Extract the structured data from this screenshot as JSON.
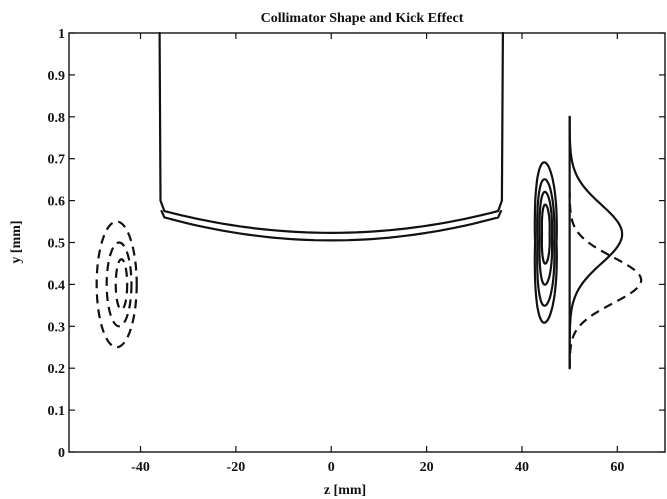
{
  "chart_data": {
    "type": "line",
    "title": "Collimator Shape and Kick Effect",
    "xlabel": "z [mm]",
    "ylabel": "y [mm]",
    "xlim": [
      -55,
      70
    ],
    "ylim": [
      0,
      1
    ],
    "xticks": [
      -40,
      -20,
      0,
      20,
      40,
      60
    ],
    "yticks": [
      0,
      0.1,
      0.2,
      0.3,
      0.4,
      0.5,
      0.6,
      0.7,
      0.8,
      0.9,
      1
    ],
    "ytick_labels": [
      "0",
      "0.1",
      "0.2",
      "0.3",
      "0.4",
      "0.5",
      "0.6",
      "0.7",
      "0.8",
      "0.9",
      "1"
    ],
    "grid": false,
    "collimator": {
      "outer": [
        [
          -36,
          1.0
        ],
        [
          -35.8,
          0.6
        ],
        [
          -35,
          0.575
        ],
        [
          -20,
          0.552
        ],
        [
          0,
          0.523
        ],
        [
          20,
          0.552
        ],
        [
          35,
          0.575
        ],
        [
          35.8,
          0.6
        ],
        [
          36,
          1.0
        ]
      ],
      "inner": [
        [
          -35,
          0.56
        ],
        [
          -20,
          0.533
        ],
        [
          0,
          0.505
        ],
        [
          20,
          0.533
        ],
        [
          35,
          0.56
        ]
      ]
    },
    "incoming_beam_contours": [
      {
        "center": [
          -45,
          0.4
        ],
        "rx": 4.2,
        "ry": 0.15
      },
      {
        "center": [
          -44.5,
          0.4
        ],
        "rx": 2.6,
        "ry": 0.1
      },
      {
        "center": [
          -44,
          0.4
        ],
        "rx": 1.2,
        "ry": 0.06
      }
    ],
    "kicked_beam_contours": [
      {
        "center": [
          45,
          0.5
        ],
        "rx": 2.8,
        "ry": 0.19
      },
      {
        "center": [
          45,
          0.5
        ],
        "rx": 2.2,
        "ry": 0.15
      },
      {
        "center": [
          45,
          0.51
        ],
        "rx": 1.6,
        "ry": 0.11
      },
      {
        "center": [
          45,
          0.52
        ],
        "rx": 1.0,
        "ry": 0.07
      }
    ],
    "profiles": [
      {
        "style": "solid",
        "baseline_z": 50,
        "center_y": 0.52,
        "sigma": 0.07,
        "amplitude": 11,
        "y_range": [
          0.2,
          0.8
        ]
      },
      {
        "style": "dashed",
        "baseline_z": 50,
        "center_y": 0.41,
        "sigma": 0.055,
        "amplitude": 15,
        "y_range": [
          0.2,
          0.62
        ]
      }
    ]
  }
}
